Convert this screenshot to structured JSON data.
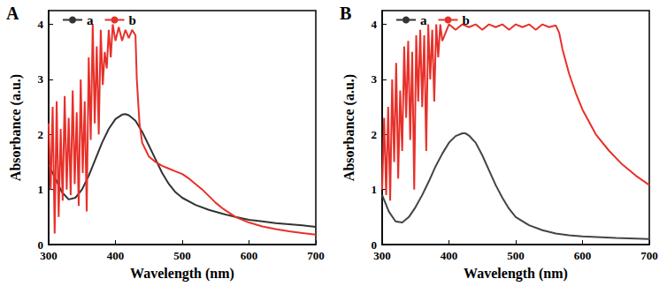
{
  "chart_data": [
    {
      "type": "line",
      "title": "A",
      "xlabel": "Wavelength (nm)",
      "ylabel": "Absorbance (a.u.)",
      "xlim": [
        300,
        700
      ],
      "xticks": [
        300,
        400,
        500,
        600,
        700
      ],
      "ylim": [
        0,
        4.25
      ],
      "yticks": [
        0,
        1,
        2,
        3,
        4
      ],
      "grid": false,
      "legend": "upper left",
      "series": [
        {
          "name": "a",
          "color": "#333333",
          "line_style": "solid",
          "marker": "none",
          "x": [
            300,
            310,
            320,
            330,
            340,
            350,
            360,
            370,
            380,
            390,
            400,
            410,
            415,
            420,
            430,
            440,
            450,
            460,
            470,
            480,
            490,
            500,
            520,
            540,
            560,
            580,
            600,
            620,
            640,
            660,
            680,
            700
          ],
          "values": [
            1.45,
            1.2,
            0.95,
            0.82,
            0.85,
            1.0,
            1.25,
            1.55,
            1.85,
            2.1,
            2.28,
            2.36,
            2.37,
            2.35,
            2.25,
            2.05,
            1.8,
            1.55,
            1.3,
            1.1,
            0.95,
            0.85,
            0.72,
            0.63,
            0.56,
            0.5,
            0.45,
            0.42,
            0.39,
            0.37,
            0.35,
            0.32
          ]
        },
        {
          "name": "b",
          "color": "#e8302a",
          "line_style": "solid",
          "marker": "none",
          "x": [
            300,
            303,
            306,
            309,
            312,
            315,
            318,
            321,
            324,
            327,
            330,
            333,
            336,
            339,
            342,
            345,
            348,
            351,
            354,
            357,
            360,
            363,
            366,
            369,
            372,
            375,
            378,
            381,
            384,
            387,
            390,
            393,
            396,
            400,
            405,
            410,
            415,
            420,
            425,
            430,
            432,
            436,
            440,
            450,
            460,
            470,
            480,
            490,
            500,
            510,
            520,
            530,
            540,
            550,
            560,
            570,
            580,
            600,
            620,
            640,
            660,
            680,
            700
          ],
          "values": [
            2.2,
            1.0,
            2.5,
            0.2,
            2.6,
            0.5,
            2.1,
            0.8,
            2.7,
            1.0,
            2.3,
            0.9,
            2.8,
            1.1,
            2.4,
            0.7,
            3.0,
            1.3,
            2.6,
            0.6,
            3.4,
            1.9,
            4.0,
            2.2,
            3.6,
            2.0,
            3.9,
            2.9,
            3.5,
            3.2,
            3.9,
            3.4,
            4.0,
            3.7,
            3.95,
            3.7,
            3.9,
            3.75,
            3.9,
            3.8,
            3.0,
            2.2,
            1.85,
            1.6,
            1.5,
            1.43,
            1.38,
            1.33,
            1.28,
            1.2,
            1.1,
            1.0,
            0.88,
            0.76,
            0.66,
            0.58,
            0.5,
            0.4,
            0.33,
            0.28,
            0.24,
            0.21,
            0.18
          ]
        }
      ]
    },
    {
      "type": "line",
      "title": "B",
      "xlabel": "Wavelength (nm)",
      "ylabel": "Absorbance (a.u.)",
      "xlim": [
        300,
        700
      ],
      "xticks": [
        300,
        400,
        500,
        600,
        700
      ],
      "ylim": [
        0,
        4.25
      ],
      "yticks": [
        0,
        1,
        2,
        3,
        4
      ],
      "grid": false,
      "legend": "upper left",
      "series": [
        {
          "name": "a",
          "color": "#444444",
          "line_style": "solid",
          "marker": "none",
          "x": [
            300,
            310,
            320,
            330,
            340,
            350,
            360,
            370,
            380,
            390,
            400,
            410,
            420,
            425,
            430,
            440,
            450,
            460,
            470,
            480,
            490,
            500,
            520,
            540,
            560,
            580,
            600,
            650,
            700
          ],
          "values": [
            0.9,
            0.6,
            0.42,
            0.4,
            0.5,
            0.68,
            0.9,
            1.15,
            1.42,
            1.65,
            1.85,
            1.97,
            2.02,
            2.02,
            1.98,
            1.85,
            1.62,
            1.35,
            1.08,
            0.85,
            0.65,
            0.5,
            0.35,
            0.26,
            0.2,
            0.17,
            0.15,
            0.12,
            0.1
          ]
        },
        {
          "name": "b",
          "color": "#e8302a",
          "line_style": "solid",
          "marker": "none",
          "x": [
            300,
            303,
            306,
            309,
            312,
            315,
            318,
            321,
            324,
            327,
            330,
            333,
            336,
            339,
            342,
            345,
            348,
            351,
            354,
            357,
            360,
            363,
            366,
            369,
            372,
            375,
            378,
            381,
            384,
            387,
            390,
            400,
            410,
            420,
            430,
            440,
            450,
            460,
            470,
            480,
            490,
            500,
            510,
            520,
            530,
            540,
            550,
            560,
            565,
            570,
            580,
            590,
            600,
            620,
            640,
            660,
            680,
            700
          ],
          "values": [
            1.0,
            2.3,
            0.9,
            2.5,
            0.8,
            3.0,
            1.5,
            3.3,
            1.2,
            2.8,
            1.7,
            3.6,
            2.3,
            3.7,
            1.9,
            3.5,
            1.0,
            3.8,
            2.6,
            3.9,
            2.5,
            3.8,
            1.7,
            4.0,
            3.0,
            3.9,
            2.6,
            4.0,
            3.4,
            4.0,
            3.7,
            4.0,
            3.9,
            4.0,
            3.95,
            4.0,
            3.9,
            4.0,
            3.95,
            4.0,
            3.9,
            4.0,
            3.95,
            4.0,
            3.9,
            4.0,
            3.95,
            3.98,
            3.85,
            3.55,
            3.1,
            2.75,
            2.45,
            2.0,
            1.7,
            1.45,
            1.25,
            1.08
          ]
        }
      ]
    }
  ]
}
